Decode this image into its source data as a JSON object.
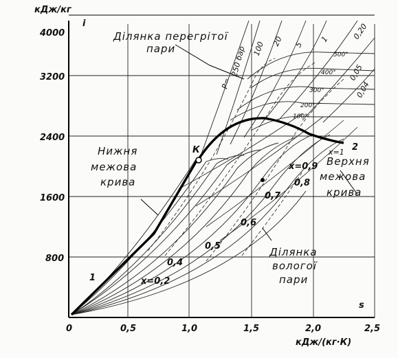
{
  "axes": {
    "y_unit": "кДж/кг",
    "x_unit": "кДж/(кг·К)",
    "y_ticks": [
      "4000",
      "3200",
      "2400",
      "1600",
      "800"
    ],
    "x_ticks": [
      "0",
      "0,5",
      "1,0",
      "1,5",
      "2,0",
      "2,5"
    ],
    "y_marker": "i",
    "x_marker": "s"
  },
  "regions": {
    "superheated": [
      "Ділянка перегрітої",
      "пари"
    ],
    "wet": [
      "Ділянка",
      "вологої",
      "пари"
    ]
  },
  "curves": {
    "lower": [
      "Нижня",
      "межова",
      "крива"
    ],
    "upper": [
      "Верхня",
      "межова",
      "крива"
    ]
  },
  "points": {
    "critical": "К",
    "start": "1",
    "end": "2"
  },
  "dryness_labels": {
    "x02": "x=0,2",
    "x04": "0,4",
    "x05": "0,5",
    "x06": "0,6",
    "x07": "0,7",
    "x08": "0,8",
    "x09": "x=0,9",
    "x1": "x=1"
  },
  "pressure_labels": {
    "p": "P=",
    "p250": "250 бар",
    "p100": "100",
    "p20": "20",
    "p5": "5",
    "p1": "1",
    "p020": "0,20",
    "p005": "0,05",
    "p004": "0,04"
  },
  "temperature_labels": {
    "t500": "500°",
    "t400": "400°",
    "t300": "300°",
    "t200": "200°",
    "t100": "100°"
  }
}
